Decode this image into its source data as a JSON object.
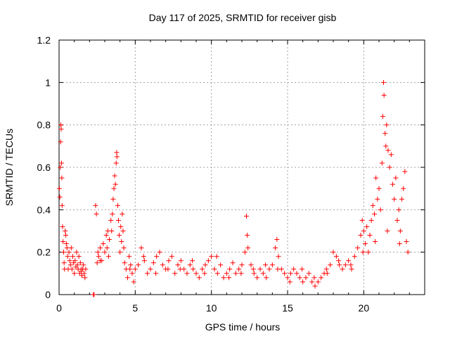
{
  "chart_data": {
    "type": "scatter",
    "title": "Day 117 of 2025, SRMTID for receiver gisb",
    "xlabel": "GPS time / hours",
    "ylabel": "SRMTID / TECUs",
    "xlim": [
      0,
      24
    ],
    "ylim": [
      0,
      1.2
    ],
    "xticks": [
      0,
      5,
      10,
      15,
      20
    ],
    "xtick_labels": [
      "0",
      "5",
      "10",
      "15",
      "20"
    ],
    "yticks": [
      0,
      0.2,
      0.4,
      0.6,
      0.8,
      1.0,
      1.2
    ],
    "ytick_labels": [
      "0",
      "0.2",
      "0.4",
      "0.6",
      "0.8",
      "1",
      "1.2"
    ],
    "grid": true,
    "marker": "+",
    "series": [
      {
        "name": "SRMTID",
        "color": "#ff0000",
        "points": [
          [
            0.02,
            0.5
          ],
          [
            0.05,
            0.46
          ],
          [
            0.08,
            0.6
          ],
          [
            0.1,
            0.72
          ],
          [
            0.12,
            0.8
          ],
          [
            0.14,
            0.78
          ],
          [
            0.16,
            0.62
          ],
          [
            0.18,
            0.55
          ],
          [
            0.2,
            0.42
          ],
          [
            0.23,
            0.32
          ],
          [
            0.26,
            0.25
          ],
          [
            0.3,
            0.2
          ],
          [
            0.33,
            0.15
          ],
          [
            0.36,
            0.12
          ],
          [
            0.4,
            0.3
          ],
          [
            0.44,
            0.28
          ],
          [
            0.48,
            0.24
          ],
          [
            0.52,
            0.22
          ],
          [
            0.56,
            0.18
          ],
          [
            0.6,
            0.12
          ],
          [
            0.65,
            0.2
          ],
          [
            0.7,
            0.16
          ],
          [
            0.75,
            0.14
          ],
          [
            0.8,
            0.22
          ],
          [
            0.85,
            0.12
          ],
          [
            0.9,
            0.18
          ],
          [
            0.95,
            0.15
          ],
          [
            1.0,
            0.1
          ],
          [
            1.05,
            0.16
          ],
          [
            1.1,
            0.13
          ],
          [
            1.15,
            0.2
          ],
          [
            1.2,
            0.14
          ],
          [
            1.25,
            0.12
          ],
          [
            1.3,
            0.18
          ],
          [
            1.35,
            0.1
          ],
          [
            1.4,
            0.15
          ],
          [
            1.45,
            0.11
          ],
          [
            1.5,
            0.09
          ],
          [
            1.55,
            0.12
          ],
          [
            1.6,
            0.14
          ],
          [
            1.65,
            0.1
          ],
          [
            1.7,
            0.08
          ],
          [
            1.75,
            0.12
          ],
          [
            2.25,
            0.0
          ],
          [
            2.3,
            0.0
          ],
          [
            2.4,
            0.42
          ],
          [
            2.45,
            0.38
          ],
          [
            2.5,
            0.15
          ],
          [
            2.55,
            0.2
          ],
          [
            2.6,
            0.18
          ],
          [
            2.7,
            0.22
          ],
          [
            2.8,
            0.16
          ],
          [
            2.9,
            0.24
          ],
          [
            3.0,
            0.2
          ],
          [
            3.1,
            0.28
          ],
          [
            3.15,
            0.22
          ],
          [
            3.2,
            0.3
          ],
          [
            3.25,
            0.18
          ],
          [
            3.3,
            0.26
          ],
          [
            3.4,
            0.35
          ],
          [
            3.45,
            0.3
          ],
          [
            3.5,
            0.38
          ],
          [
            3.55,
            0.45
          ],
          [
            3.6,
            0.5
          ],
          [
            3.65,
            0.56
          ],
          [
            3.7,
            0.52
          ],
          [
            3.75,
            0.62
          ],
          [
            3.78,
            0.67
          ],
          [
            3.8,
            0.65
          ],
          [
            3.85,
            0.42
          ],
          [
            3.9,
            0.35
          ],
          [
            3.95,
            0.28
          ],
          [
            4.0,
            0.2
          ],
          [
            4.05,
            0.32
          ],
          [
            4.1,
            0.25
          ],
          [
            4.15,
            0.38
          ],
          [
            4.2,
            0.3
          ],
          [
            4.25,
            0.22
          ],
          [
            4.3,
            0.15
          ],
          [
            4.4,
            0.12
          ],
          [
            4.5,
            0.08
          ],
          [
            4.6,
            0.18
          ],
          [
            4.7,
            0.14
          ],
          [
            4.8,
            0.1
          ],
          [
            4.9,
            0.06
          ],
          [
            5.0,
            0.12
          ],
          [
            5.2,
            0.14
          ],
          [
            5.4,
            0.22
          ],
          [
            5.6,
            0.16
          ],
          [
            5.8,
            0.1
          ],
          [
            6.0,
            0.12
          ],
          [
            6.2,
            0.15
          ],
          [
            6.4,
            0.18
          ],
          [
            6.6,
            0.2
          ],
          [
            6.8,
            0.14
          ],
          [
            7.0,
            0.12
          ],
          [
            7.2,
            0.16
          ],
          [
            7.4,
            0.18
          ],
          [
            7.6,
            0.1
          ],
          [
            7.8,
            0.14
          ],
          [
            8.0,
            0.16
          ],
          [
            8.2,
            0.12
          ],
          [
            8.4,
            0.1
          ],
          [
            8.6,
            0.14
          ],
          [
            8.8,
            0.12
          ],
          [
            9.0,
            0.1
          ],
          [
            9.2,
            0.08
          ],
          [
            9.4,
            0.12
          ],
          [
            9.6,
            0.14
          ],
          [
            9.8,
            0.16
          ],
          [
            10.0,
            0.18
          ],
          [
            10.2,
            0.12
          ],
          [
            10.4,
            0.1
          ],
          [
            10.6,
            0.14
          ],
          [
            10.8,
            0.08
          ],
          [
            11.0,
            0.1
          ],
          [
            11.2,
            0.12
          ],
          [
            11.4,
            0.15
          ],
          [
            11.6,
            0.1
          ],
          [
            11.8,
            0.12
          ],
          [
            12.0,
            0.14
          ],
          [
            12.2,
            0.2
          ],
          [
            12.3,
            0.37
          ],
          [
            12.35,
            0.28
          ],
          [
            12.4,
            0.22
          ],
          [
            12.6,
            0.14
          ],
          [
            12.8,
            0.1
          ],
          [
            13.0,
            0.08
          ],
          [
            13.2,
            0.12
          ],
          [
            13.4,
            0.1
          ],
          [
            13.6,
            0.08
          ],
          [
            13.8,
            0.12
          ],
          [
            14.0,
            0.14
          ],
          [
            14.2,
            0.22
          ],
          [
            14.3,
            0.26
          ],
          [
            14.4,
            0.18
          ],
          [
            14.6,
            0.12
          ],
          [
            14.8,
            0.1
          ],
          [
            15.0,
            0.08
          ],
          [
            15.2,
            0.1
          ],
          [
            15.4,
            0.12
          ],
          [
            15.6,
            0.1
          ],
          [
            15.8,
            0.08
          ],
          [
            16.0,
            0.06
          ],
          [
            16.2,
            0.08
          ],
          [
            16.4,
            0.1
          ],
          [
            16.6,
            0.06
          ],
          [
            16.8,
            0.04
          ],
          [
            17.0,
            0.06
          ],
          [
            17.2,
            0.08
          ],
          [
            17.4,
            0.1
          ],
          [
            17.6,
            0.1
          ],
          [
            17.8,
            0.14
          ],
          [
            18.0,
            0.2
          ],
          [
            18.2,
            0.18
          ],
          [
            18.4,
            0.14
          ],
          [
            18.6,
            0.12
          ],
          [
            18.8,
            0.14
          ],
          [
            19.0,
            0.16
          ],
          [
            19.2,
            0.12
          ],
          [
            19.4,
            0.18
          ],
          [
            19.6,
            0.22
          ],
          [
            19.8,
            0.28
          ],
          [
            19.9,
            0.35
          ],
          [
            20.0,
            0.3
          ],
          [
            20.1,
            0.24
          ],
          [
            20.2,
            0.32
          ],
          [
            20.3,
            0.2
          ],
          [
            20.4,
            0.28
          ],
          [
            20.5,
            0.35
          ],
          [
            20.6,
            0.42
          ],
          [
            20.7,
            0.38
          ],
          [
            20.8,
            0.55
          ],
          [
            20.9,
            0.45
          ],
          [
            21.0,
            0.5
          ],
          [
            21.1,
            0.4
          ],
          [
            21.2,
            0.62
          ],
          [
            21.25,
            0.84
          ],
          [
            21.3,
            1.0
          ],
          [
            21.33,
            0.94
          ],
          [
            21.4,
            0.76
          ],
          [
            21.45,
            0.7
          ],
          [
            21.5,
            0.8
          ],
          [
            21.6,
            0.68
          ],
          [
            21.7,
            0.6
          ],
          [
            21.8,
            0.66
          ],
          [
            21.9,
            0.52
          ],
          [
            22.0,
            0.45
          ],
          [
            22.1,
            0.55
          ],
          [
            22.2,
            0.35
          ],
          [
            22.3,
            0.4
          ],
          [
            22.4,
            0.3
          ],
          [
            22.5,
            0.45
          ],
          [
            22.6,
            0.5
          ],
          [
            22.7,
            0.58
          ],
          [
            22.8,
            0.25
          ],
          [
            22.9,
            0.2
          ],
          [
            1.45,
            0.12
          ],
          [
            2.7,
            0.16
          ],
          [
            4.65,
            0.12
          ],
          [
            5.55,
            0.18
          ],
          [
            6.35,
            0.1
          ],
          [
            7.15,
            0.12
          ],
          [
            7.95,
            0.12
          ],
          [
            8.75,
            0.16
          ],
          [
            9.55,
            0.1
          ],
          [
            10.35,
            0.18
          ],
          [
            11.15,
            0.08
          ],
          [
            11.95,
            0.1
          ],
          [
            12.75,
            0.12
          ],
          [
            13.55,
            0.14
          ],
          [
            14.35,
            0.12
          ],
          [
            15.15,
            0.06
          ],
          [
            15.95,
            0.12
          ],
          [
            16.75,
            0.08
          ],
          [
            17.55,
            0.12
          ],
          [
            18.35,
            0.16
          ],
          [
            19.15,
            0.14
          ],
          [
            19.95,
            0.2
          ],
          [
            20.75,
            0.25
          ],
          [
            21.55,
            0.3
          ],
          [
            22.35,
            0.24
          ]
        ]
      }
    ]
  }
}
